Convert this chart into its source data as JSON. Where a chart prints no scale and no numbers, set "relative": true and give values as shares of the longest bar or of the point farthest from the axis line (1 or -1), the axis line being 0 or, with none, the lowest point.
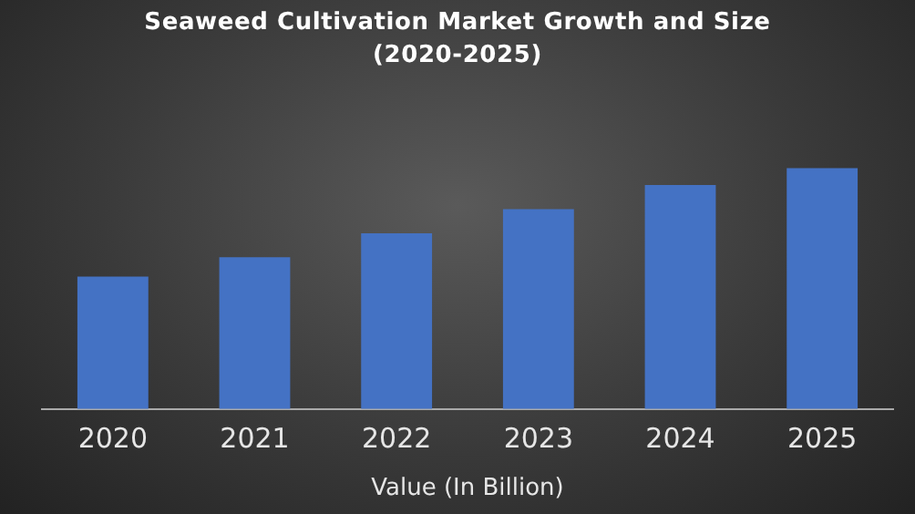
{
  "chart_data": {
    "type": "bar",
    "title": "Seaweed Cultivation Market Growth and Size (2020-2025)",
    "xlabel": "Value (In Billion)",
    "categories": [
      "2020",
      "2021",
      "2022",
      "2023",
      "2024",
      "2025"
    ],
    "values": [
      0.55,
      0.63,
      0.73,
      0.83,
      0.93,
      1
    ],
    "color": "#4472c4",
    "relative": true
  }
}
